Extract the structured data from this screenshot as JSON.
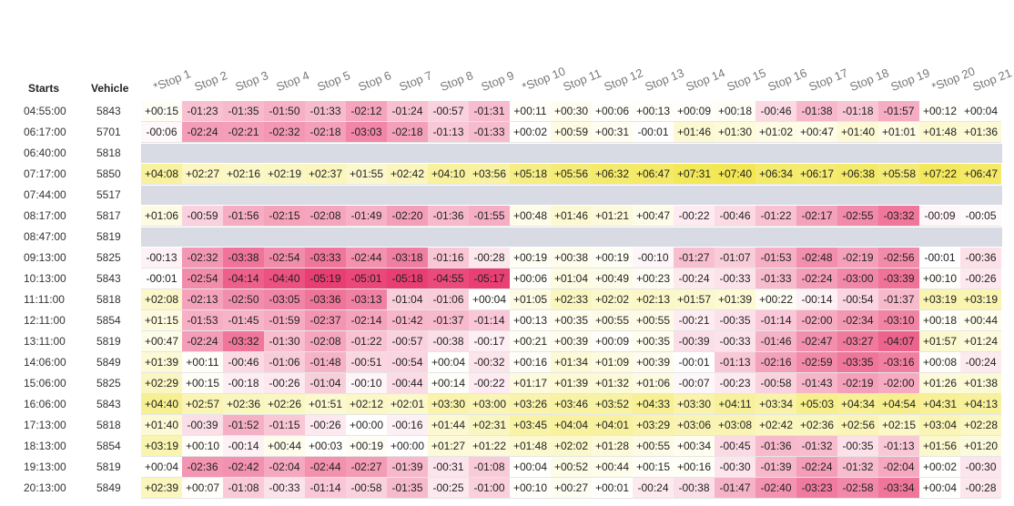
{
  "table": {
    "col_starts": "Starts",
    "col_vehicle": "Vehicle",
    "stops": [
      "*Stop 1",
      "Stop 2",
      "Stop 3",
      "Stop 4",
      "Stop 5",
      "Stop 6",
      "Stop 7",
      "Stop 8",
      "Stop 9",
      "*Stop 10",
      "Stop 11",
      "Stop 12",
      "Stop 13",
      "Stop 14",
      "Stop 15",
      "Stop 16",
      "Stop 17",
      "Stop 18",
      "Stop 19",
      "*Stop 20",
      "Stop 21"
    ],
    "rows": [
      {
        "start": "04:55:00",
        "vehicle": "5843",
        "values": [
          "+00:15",
          "-01:23",
          "-01:35",
          "-01:50",
          "-01:33",
          "-02:12",
          "-01:24",
          "-00:57",
          "-01:31",
          "+00:11",
          "+00:30",
          "+00:06",
          "+00:13",
          "+00:09",
          "+00:18",
          "-00:46",
          "-01:38",
          "-01:18",
          "-01:57",
          "+00:12",
          "+00:04"
        ]
      },
      {
        "start": "06:17:00",
        "vehicle": "5701",
        "values": [
          "-00:06",
          "-02:24",
          "-02:21",
          "-02:32",
          "-02:18",
          "-03:03",
          "-02:18",
          "-01:13",
          "-01:33",
          "+00:02",
          "+00:59",
          "+00:31",
          "-00:01",
          "+01:46",
          "+01:30",
          "+01:02",
          "+00:47",
          "+01:40",
          "+01:01",
          "+01:48",
          "+01:36"
        ]
      },
      {
        "start": "06:40:00",
        "vehicle": "5818",
        "values": []
      },
      {
        "start": "07:17:00",
        "vehicle": "5850",
        "values": [
          "+04:08",
          "+02:27",
          "+02:16",
          "+02:19",
          "+02:37",
          "+01:55",
          "+02:42",
          "+04:10",
          "+03:56",
          "+05:18",
          "+05:56",
          "+06:32",
          "+06:47",
          "+07:31",
          "+07:40",
          "+06:34",
          "+06:17",
          "+06:38",
          "+05:58",
          "+07:22",
          "+06:47"
        ]
      },
      {
        "start": "07:44:00",
        "vehicle": "5517",
        "values": []
      },
      {
        "start": "08:17:00",
        "vehicle": "5817",
        "values": [
          "+01:06",
          "-00:59",
          "-01:56",
          "-02:15",
          "-02:08",
          "-01:49",
          "-02:20",
          "-01:36",
          "-01:55",
          "+00:48",
          "+01:46",
          "+01:21",
          "+00:47",
          "-00:22",
          "-00:46",
          "-01:22",
          "-02:17",
          "-02:55",
          "-03:32",
          "-00:09",
          "-00:05"
        ]
      },
      {
        "start": "08:47:00",
        "vehicle": "5819",
        "values": []
      },
      {
        "start": "09:13:00",
        "vehicle": "5825",
        "values": [
          "-00:13",
          "-02:32",
          "-03:38",
          "-02:54",
          "-03:33",
          "-02:44",
          "-03:18",
          "-01:16",
          "-00:28",
          "+00:19",
          "+00:38",
          "+00:19",
          "-00:10",
          "-01:27",
          "-01:07",
          "-01:53",
          "-02:48",
          "-02:19",
          "-02:56",
          "-00:01",
          "-00:36"
        ]
      },
      {
        "start": "10:13:00",
        "vehicle": "5843",
        "values": [
          "-00:01",
          "-02:54",
          "-04:14",
          "-04:40",
          "-05:19",
          "-05:01",
          "-05:18",
          "-04:55",
          "-05:17",
          "+00:06",
          "+01:04",
          "+00:49",
          "+00:23",
          "-00:24",
          "-00:33",
          "-01:33",
          "-02:24",
          "-03:00",
          "-03:39",
          "+00:10",
          "-00:26"
        ]
      },
      {
        "start": "11:11:00",
        "vehicle": "5818",
        "values": [
          "+02:08",
          "-02:13",
          "-02:50",
          "-03:05",
          "-03:36",
          "-03:13",
          "-01:04",
          "-01:06",
          "+00:04",
          "+01:05",
          "+02:33",
          "+02:02",
          "+02:13",
          "+01:57",
          "+01:39",
          "+00:22",
          "-00:14",
          "-00:54",
          "-01:37",
          "+03:19",
          "+03:19"
        ]
      },
      {
        "start": "12:11:00",
        "vehicle": "5854",
        "values": [
          "+01:15",
          "-01:53",
          "-01:45",
          "-01:59",
          "-02:37",
          "-02:14",
          "-01:42",
          "-01:37",
          "-01:14",
          "+00:13",
          "+00:35",
          "+00:55",
          "+00:55",
          "-00:21",
          "-00:35",
          "-01:14",
          "-02:00",
          "-02:34",
          "-03:10",
          "+00:18",
          "+00:44"
        ]
      },
      {
        "start": "13:11:00",
        "vehicle": "5819",
        "values": [
          "+00:47",
          "-02:24",
          "-03:32",
          "-01:30",
          "-02:08",
          "-01:22",
          "-00:57",
          "-00:38",
          "-00:17",
          "+00:21",
          "+00:39",
          "+00:09",
          "+00:35",
          "-00:39",
          "-00:33",
          "-01:46",
          "-02:47",
          "-03:27",
          "-04:07",
          "+01:57",
          "+01:24"
        ]
      },
      {
        "start": "14:06:00",
        "vehicle": "5849",
        "values": [
          "+01:39",
          "+00:11",
          "-00:46",
          "-01:06",
          "-01:48",
          "-00:51",
          "-00:54",
          "+00:04",
          "-00:32",
          "+00:16",
          "+01:34",
          "+01:09",
          "+00:39",
          "-00:01",
          "-01:13",
          "-02:16",
          "-02:59",
          "-03:35",
          "-03:16",
          "+00:08",
          "-00:24"
        ]
      },
      {
        "start": "15:06:00",
        "vehicle": "5825",
        "values": [
          "+02:29",
          "+00:15",
          "-00:18",
          "-00:26",
          "-01:04",
          "-00:10",
          "-00:44",
          "+00:14",
          "-00:22",
          "+01:17",
          "+01:39",
          "+01:32",
          "+01:06",
          "-00:07",
          "-00:23",
          "-00:58",
          "-01:43",
          "-02:19",
          "-02:00",
          "+01:26",
          "+01:38"
        ]
      },
      {
        "start": "16:06:00",
        "vehicle": "5843",
        "values": [
          "+04:40",
          "+02:57",
          "+02:36",
          "+02:26",
          "+01:51",
          "+02:12",
          "+02:01",
          "+03:30",
          "+03:00",
          "+03:26",
          "+03:46",
          "+03:52",
          "+04:33",
          "+03:30",
          "+04:11",
          "+03:34",
          "+05:03",
          "+04:34",
          "+04:54",
          "+04:31",
          "+04:13"
        ]
      },
      {
        "start": "17:13:00",
        "vehicle": "5818",
        "values": [
          "+01:40",
          "-00:39",
          "-01:52",
          "-01:15",
          "-00:26",
          "+00:00",
          "-00:16",
          "+01:44",
          "+02:31",
          "+03:45",
          "+04:04",
          "+04:01",
          "+03:29",
          "+03:06",
          "+03:08",
          "+02:42",
          "+02:36",
          "+02:56",
          "+02:15",
          "+03:04",
          "+02:28"
        ]
      },
      {
        "start": "18:13:00",
        "vehicle": "5854",
        "values": [
          "+03:19",
          "+00:10",
          "-00:14",
          "+00:44",
          "+00:03",
          "+00:19",
          "+00:00",
          "+01:27",
          "+01:22",
          "+01:48",
          "+02:02",
          "+01:28",
          "+00:55",
          "+00:34",
          "-00:45",
          "-01:36",
          "-01:32",
          "-00:35",
          "-01:13",
          "+01:56",
          "+01:20"
        ]
      },
      {
        "start": "19:13:00",
        "vehicle": "5819",
        "values": [
          "+00:04",
          "-02:36",
          "-02:42",
          "-02:04",
          "-02:44",
          "-02:27",
          "-01:39",
          "-00:31",
          "-01:08",
          "+00:04",
          "+00:52",
          "+00:44",
          "+00:15",
          "+00:16",
          "-00:30",
          "-01:39",
          "-02:24",
          "-01:32",
          "-02:04",
          "+00:02",
          "-00:30"
        ]
      },
      {
        "start": "20:13:00",
        "vehicle": "5849",
        "values": [
          "+02:39",
          "+00:07",
          "-01:08",
          "-00:33",
          "-01:14",
          "-00:58",
          "-01:35",
          "-00:25",
          "-01:00",
          "+00:10",
          "+00:27",
          "+00:01",
          "-00:24",
          "-00:38",
          "-01:47",
          "-02:40",
          "-03:23",
          "-02:58",
          "-03:34",
          "+00:04",
          "-00:28"
        ]
      }
    ]
  },
  "colors": {
    "late_max": "#e8336b",
    "early_max": "#f2e64c",
    "neutral": "#ffffff",
    "blank_row": "#d9dbe4",
    "cell_border": "#e6e6e6"
  }
}
